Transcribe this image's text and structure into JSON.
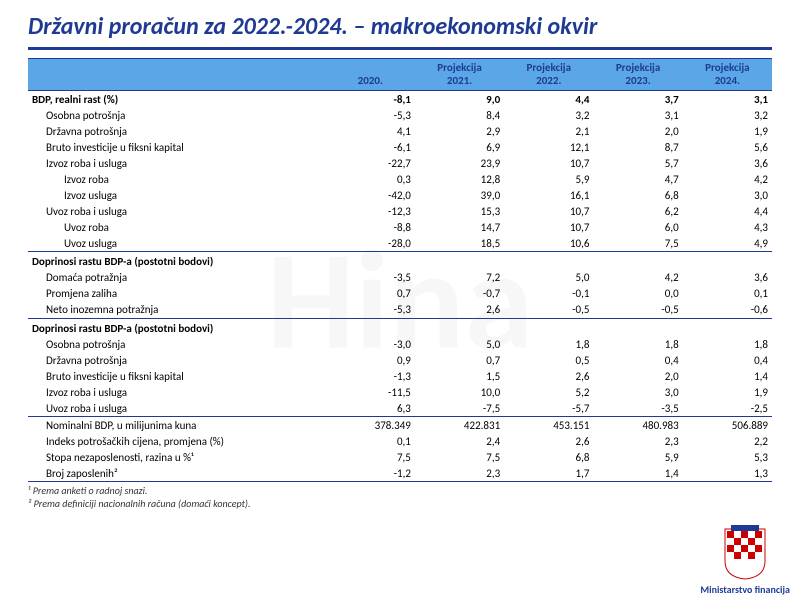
{
  "slide": {
    "title": "Državni proračun za 2022.-2024. – makroekonomski okvir",
    "ministry": "Ministarstvo financija",
    "watermark": "Hina",
    "colors": {
      "header_bg": "#5aa6e6",
      "accent": "#1f3a93",
      "text": "#000000",
      "bg": "#ffffff"
    },
    "footnotes": [
      "¹ Prema anketi o radnoj snazi.",
      "² Prema definiciji nacionalnih računa (domaći koncept)."
    ],
    "table": {
      "columns": [
        "",
        "2020.",
        "Projekcija 2021.",
        "Projekcija 2022.",
        "Projekcija 2023.",
        "Projekcija 2024."
      ],
      "col_widths_pct": [
        40,
        12,
        12,
        12,
        12,
        12
      ],
      "rows": [
        {
          "label": "BDP, realni rast (%)",
          "vals": [
            "-8,1",
            "9,0",
            "4,4",
            "3,7",
            "3,1"
          ],
          "bold": true,
          "border_top": true
        },
        {
          "label": "Osobna potrošnja",
          "vals": [
            "-5,3",
            "8,4",
            "3,2",
            "3,1",
            "3,2"
          ],
          "indent": 1
        },
        {
          "label": "Državna potrošnja",
          "vals": [
            "4,1",
            "2,9",
            "2,1",
            "2,0",
            "1,9"
          ],
          "indent": 1
        },
        {
          "label": "Bruto investicije u fiksni kapital",
          "vals": [
            "-6,1",
            "6,9",
            "12,1",
            "8,7",
            "5,6"
          ],
          "indent": 1
        },
        {
          "label": "Izvoz roba i usluga",
          "vals": [
            "-22,7",
            "23,9",
            "10,7",
            "5,7",
            "3,6"
          ],
          "indent": 1
        },
        {
          "label": "Izvoz roba",
          "vals": [
            "0,3",
            "12,8",
            "5,9",
            "4,7",
            "4,2"
          ],
          "indent": 2
        },
        {
          "label": "Izvoz usluga",
          "vals": [
            "-42,0",
            "39,0",
            "16,1",
            "6,8",
            "3,0"
          ],
          "indent": 2
        },
        {
          "label": "Uvoz roba i usluga",
          "vals": [
            "-12,3",
            "15,3",
            "10,7",
            "6,2",
            "4,4"
          ],
          "indent": 1
        },
        {
          "label": "Uvoz roba",
          "vals": [
            "-8,8",
            "14,7",
            "10,7",
            "6,0",
            "4,3"
          ],
          "indent": 2
        },
        {
          "label": "Uvoz usluga",
          "vals": [
            "-28,0",
            "18,5",
            "10,6",
            "7,5",
            "4,9"
          ],
          "indent": 2
        },
        {
          "label": "Doprinosi rastu BDP-a (postotni bodovi)",
          "vals": [
            "",
            "",
            "",
            "",
            ""
          ],
          "section": true,
          "border_top": true
        },
        {
          "label": "Domaća potražnja",
          "vals": [
            "-3,5",
            "7,2",
            "5,0",
            "4,2",
            "3,6"
          ],
          "indent": 1
        },
        {
          "label": "Promjena zaliha",
          "vals": [
            "0,7",
            "-0,7",
            "-0,1",
            "0,0",
            "0,1"
          ],
          "indent": 1
        },
        {
          "label": "Neto inozemna potražnja",
          "vals": [
            "-5,3",
            "2,6",
            "-0,5",
            "-0,5",
            "-0,6"
          ],
          "indent": 1
        },
        {
          "label": "Doprinosi rastu BDP-a (postotni bodovi)",
          "vals": [
            "",
            "",
            "",
            "",
            ""
          ],
          "section": true,
          "border_top": true
        },
        {
          "label": "Osobna potrošnja",
          "vals": [
            "-3,0",
            "5,0",
            "1,8",
            "1,8",
            "1,8"
          ],
          "indent": 1
        },
        {
          "label": "Državna potrošnja",
          "vals": [
            "0,9",
            "0,7",
            "0,5",
            "0,4",
            "0,4"
          ],
          "indent": 1
        },
        {
          "label": "Bruto investicije u fiksni kapital",
          "vals": [
            "-1,3",
            "1,5",
            "2,6",
            "2,0",
            "1,4"
          ],
          "indent": 1
        },
        {
          "label": "Izvoz roba i usluga",
          "vals": [
            "-11,5",
            "10,0",
            "5,2",
            "3,0",
            "1,9"
          ],
          "indent": 1
        },
        {
          "label": "Uvoz roba i usluga",
          "vals": [
            "6,3",
            "-7,5",
            "-5,7",
            "-3,5",
            "-2,5"
          ],
          "indent": 1
        },
        {
          "label": "Nominalni BDP, u milijunima kuna",
          "vals": [
            "378.349",
            "422.831",
            "453.151",
            "480.983",
            "506.889"
          ],
          "indent": 1,
          "border_top": true
        },
        {
          "label": "Indeks potrošačkih cijena, promjena (%)",
          "vals": [
            "0,1",
            "2,4",
            "2,6",
            "2,3",
            "2,2"
          ],
          "indent": 1
        },
        {
          "label": "Stopa nezaposlenosti, razina u %¹",
          "vals": [
            "7,5",
            "7,5",
            "6,8",
            "5,9",
            "5,3"
          ],
          "indent": 1
        },
        {
          "label": "Broj zaposlenih²",
          "vals": [
            "-1,2",
            "2,3",
            "1,7",
            "1,4",
            "1,3"
          ],
          "indent": 1,
          "border_bottom": true
        }
      ]
    }
  }
}
